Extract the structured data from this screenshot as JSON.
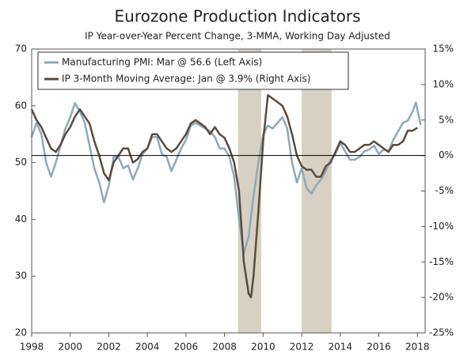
{
  "chart_data": {
    "type": "line",
    "title": "Eurozone Production Indicators",
    "subtitle": "IP Year-over-Year Percent Change, 3-MMA, Working Day Adjusted",
    "xlim": [
      1998,
      2018.4
    ],
    "xticks": [
      1998,
      2000,
      2002,
      2004,
      2006,
      2008,
      2010,
      2012,
      2014,
      2016,
      2018
    ],
    "ylim": [
      20,
      70
    ],
    "yticks": [
      20,
      30,
      40,
      50,
      60,
      70
    ],
    "y2lim": [
      -25,
      15
    ],
    "y2ticks": [
      {
        "value": 15,
        "label": "15%"
      },
      {
        "value": 10,
        "label": "10%"
      },
      {
        "value": 5,
        "label": "5%"
      },
      {
        "value": 0,
        "label": "0%"
      },
      {
        "value": -5,
        "label": "-5%"
      },
      {
        "value": -10,
        "label": "-10%"
      },
      {
        "value": -15,
        "label": "-15%"
      },
      {
        "value": -20,
        "label": "-20%"
      },
      {
        "value": -25,
        "label": "-25%"
      }
    ],
    "zero_line": true,
    "shaded_periods": [
      [
        2008.7,
        2009.9
      ],
      [
        2012.0,
        2013.55
      ]
    ],
    "shade_color": "#d6d1c3",
    "legend": "top-left",
    "series": [
      {
        "name": "Manufacturing PMI: Mar @ 56.6 (Left Axis)",
        "color": "#8fa9b7",
        "axis": "y",
        "x": [
          1998.0,
          1998.25,
          1998.5,
          1998.75,
          1999.0,
          1999.25,
          1999.5,
          1999.75,
          2000.0,
          2000.25,
          2000.5,
          2000.75,
          2001.0,
          2001.25,
          2001.5,
          2001.75,
          2002.0,
          2002.25,
          2002.5,
          2002.75,
          2003.0,
          2003.25,
          2003.5,
          2003.75,
          2004.0,
          2004.25,
          2004.5,
          2004.75,
          2005.0,
          2005.25,
          2005.5,
          2005.75,
          2006.0,
          2006.25,
          2006.5,
          2006.75,
          2007.0,
          2007.25,
          2007.5,
          2007.75,
          2008.0,
          2008.25,
          2008.5,
          2008.75,
          2009.0,
          2009.25,
          2009.5,
          2009.75,
          2010.0,
          2010.25,
          2010.5,
          2010.75,
          2011.0,
          2011.25,
          2011.5,
          2011.75,
          2012.0,
          2012.25,
          2012.5,
          2012.75,
          2013.0,
          2013.25,
          2013.5,
          2013.75,
          2014.0,
          2014.25,
          2014.5,
          2014.75,
          2015.0,
          2015.25,
          2015.5,
          2015.75,
          2016.0,
          2016.25,
          2016.5,
          2016.75,
          2017.0,
          2017.25,
          2017.5,
          2017.75,
          2017.92,
          2018.17
        ],
        "values": [
          54.5,
          57,
          55,
          50,
          47.5,
          50,
          53,
          56,
          58,
          60.5,
          59,
          57,
          53,
          49,
          46.5,
          43,
          46,
          51,
          51,
          49,
          49.5,
          47,
          49,
          51.5,
          52.5,
          54.5,
          54.5,
          51.5,
          51,
          48.5,
          50.5,
          52.5,
          54,
          56.5,
          57,
          56.5,
          56,
          55.5,
          54.5,
          52.5,
          52.5,
          51,
          47.5,
          40,
          34,
          37,
          44,
          50,
          55,
          56.5,
          56,
          57,
          58,
          56,
          50,
          46.5,
          49,
          45.5,
          44.5,
          46,
          47,
          48.5,
          50.5,
          51.5,
          53.5,
          52,
          50.5,
          50.5,
          51,
          52,
          52.3,
          53,
          51.5,
          52.3,
          52,
          54,
          55.5,
          57,
          57.4,
          59,
          60.6,
          56.6
        ]
      },
      {
        "name": "IP 3-Month Moving Average: Jan @ 3.9% (Right Axis)",
        "color": "#5b4b3f",
        "axis": "y2",
        "x": [
          1998.0,
          1998.25,
          1998.5,
          1998.75,
          1999.0,
          1999.25,
          1999.5,
          1999.75,
          2000.0,
          2000.25,
          2000.5,
          2000.75,
          2001.0,
          2001.25,
          2001.5,
          2001.75,
          2002.0,
          2002.25,
          2002.5,
          2002.75,
          2003.0,
          2003.25,
          2003.5,
          2003.75,
          2004.0,
          2004.25,
          2004.5,
          2004.75,
          2005.0,
          2005.25,
          2005.5,
          2005.75,
          2006.0,
          2006.25,
          2006.5,
          2006.75,
          2007.0,
          2007.25,
          2007.5,
          2007.75,
          2008.0,
          2008.25,
          2008.5,
          2008.75,
          2009.0,
          2009.25,
          2009.375,
          2009.5,
          2009.75,
          2010.0,
          2010.25,
          2010.5,
          2010.75,
          2011.0,
          2011.25,
          2011.5,
          2011.75,
          2012.0,
          2012.25,
          2012.5,
          2012.75,
          2013.0,
          2013.25,
          2013.5,
          2013.75,
          2014.0,
          2014.25,
          2014.5,
          2014.75,
          2015.0,
          2015.25,
          2015.5,
          2015.75,
          2016.0,
          2016.25,
          2016.5,
          2016.75,
          2017.0,
          2017.25,
          2017.5,
          2017.75,
          2018.0
        ],
        "values": [
          6.5,
          5,
          4,
          2.5,
          1,
          0.5,
          1.5,
          3,
          4,
          5.5,
          6.5,
          5.5,
          4.5,
          2,
          0,
          -2.5,
          -3.5,
          -1,
          0,
          1,
          1,
          -1,
          -0.5,
          0.5,
          1,
          3,
          3,
          2,
          1,
          0.5,
          1,
          2,
          3,
          4.5,
          5,
          4.5,
          4,
          3,
          4,
          3,
          2.5,
          1,
          -1,
          -5,
          -15,
          -19.5,
          -20,
          -17,
          -8,
          2,
          8.5,
          8,
          7.5,
          7,
          5.5,
          3,
          0,
          -1.5,
          -2,
          -2,
          -3,
          -3,
          -1.5,
          -1,
          0.5,
          2,
          1.5,
          0.5,
          0.5,
          1,
          1.5,
          1.5,
          2,
          1.5,
          1,
          0.5,
          1.5,
          1.5,
          2,
          3.5,
          3.5,
          3.9
        ]
      }
    ]
  }
}
